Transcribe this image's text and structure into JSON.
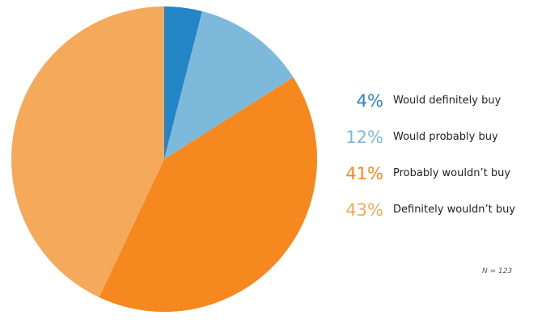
{
  "chart_data": {
    "type": "pie",
    "categories": [
      "Would definitely buy",
      "Would probably buy",
      "Probably wouldn’t buy",
      "Definitely wouldn’t buy"
    ],
    "values": [
      4,
      12,
      41,
      43
    ],
    "value_labels": [
      "4%",
      "12%",
      "41%",
      "43%"
    ],
    "colors": [
      "#2385c6",
      "#7cb9da",
      "#f5891f",
      "#f5a95a"
    ],
    "legend_placement": "right",
    "note": "N = 123"
  }
}
